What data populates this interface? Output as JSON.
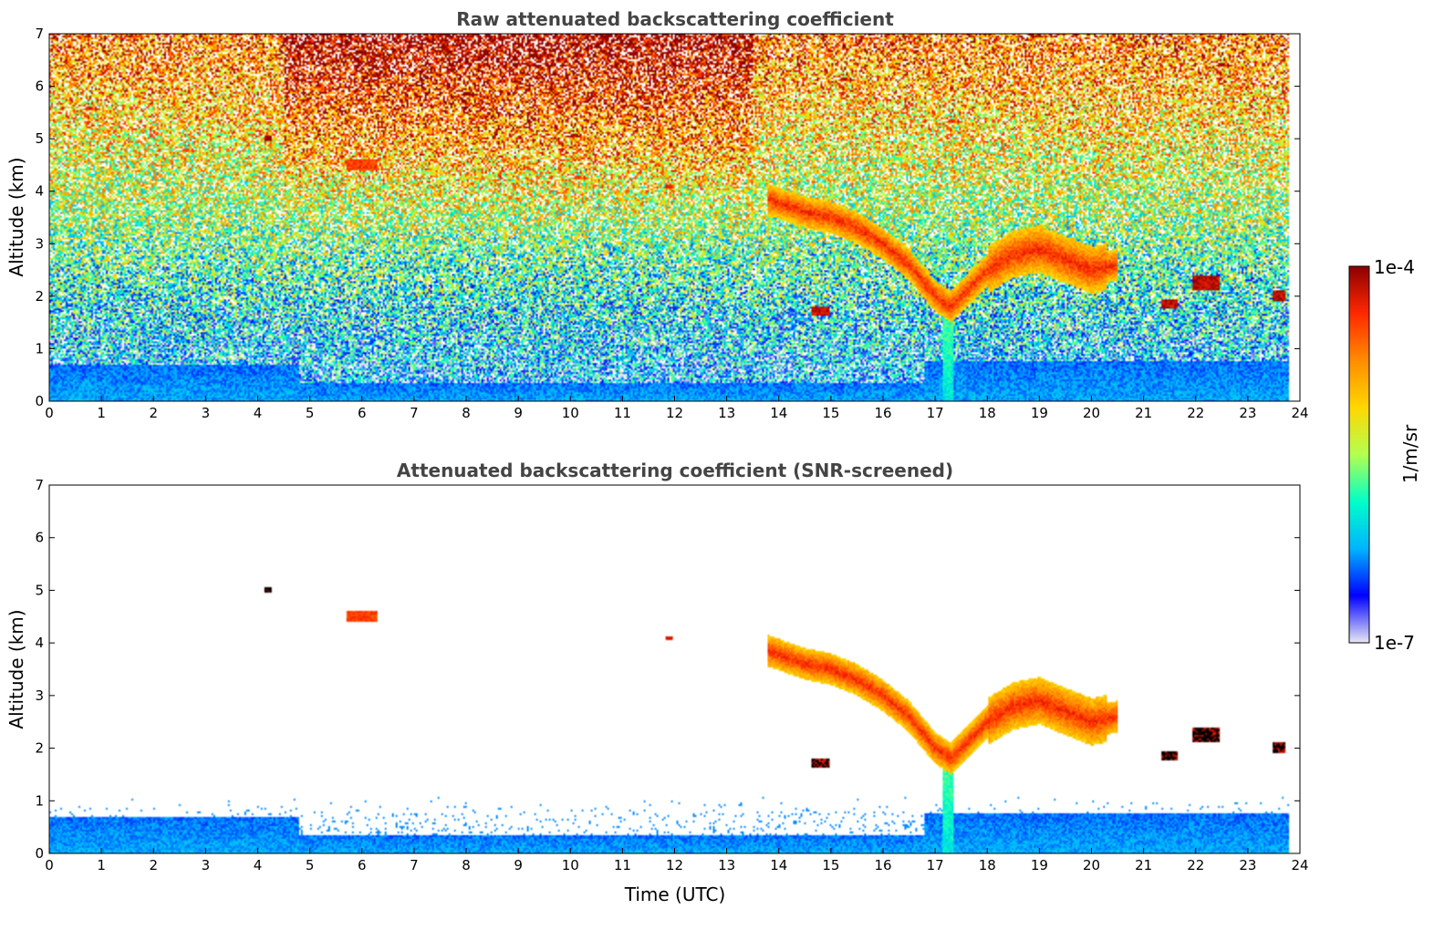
{
  "chart_data": [
    {
      "type": "heatmap",
      "title": "Raw attenuated backscattering coefficient",
      "xlabel": "",
      "ylabel": "Altitude (km)",
      "xlim": [
        0,
        24
      ],
      "ylim": [
        0,
        7
      ],
      "xticks": [
        0,
        1,
        2,
        3,
        4,
        5,
        6,
        7,
        8,
        9,
        10,
        11,
        12,
        13,
        14,
        15,
        16,
        17,
        18,
        19,
        20,
        21,
        22,
        23,
        24
      ],
      "yticks": [
        0,
        1,
        2,
        3,
        4,
        5,
        6,
        7
      ],
      "screened": false,
      "cloud_layer": {
        "x": [
          13.8,
          14.5,
          15.0,
          15.5,
          16.0,
          16.5,
          17.0,
          17.3,
          17.6,
          18.0,
          18.5,
          19.0,
          19.5,
          20.0,
          20.5
        ],
        "y": [
          3.85,
          3.6,
          3.5,
          3.3,
          3.0,
          2.6,
          2.0,
          1.8,
          2.1,
          2.5,
          2.8,
          2.9,
          2.7,
          2.5,
          2.6
        ]
      },
      "features": [
        {
          "x": 4.2,
          "y": 5.0,
          "w": 0.15,
          "h": 0.12,
          "level": 1.0
        },
        {
          "x": 14.8,
          "y": 1.72,
          "w": 0.35,
          "h": 0.15,
          "level": 0.95
        },
        {
          "x": 21.5,
          "y": 1.85,
          "w": 0.3,
          "h": 0.2,
          "level": 0.95
        },
        {
          "x": 22.2,
          "y": 2.25,
          "w": 0.5,
          "h": 0.25,
          "level": 0.95
        },
        {
          "x": 23.6,
          "y": 2.0,
          "w": 0.25,
          "h": 0.2,
          "level": 0.95
        },
        {
          "x": 6.0,
          "y": 4.5,
          "w": 0.6,
          "h": 0.2,
          "level": 0.85
        },
        {
          "x": 11.9,
          "y": 4.08,
          "w": 0.15,
          "h": 0.06,
          "level": 0.9
        }
      ]
    },
    {
      "type": "heatmap",
      "title": "Attenuated backscattering coefficient (SNR-screened)",
      "xlabel": "Time (UTC)",
      "ylabel": "Altitude (km)",
      "xlim": [
        0,
        24
      ],
      "ylim": [
        0,
        7
      ],
      "xticks": [
        0,
        1,
        2,
        3,
        4,
        5,
        6,
        7,
        8,
        9,
        10,
        11,
        12,
        13,
        14,
        15,
        16,
        17,
        18,
        19,
        20,
        21,
        22,
        23,
        24
      ],
      "yticks": [
        0,
        1,
        2,
        3,
        4,
        5,
        6,
        7
      ],
      "screened": true
    }
  ],
  "colorbar": {
    "label": "1/m/sr",
    "max_label": "1e-4",
    "min_label": "1e-7",
    "colormap": [
      "#e8e8f4",
      "#0000ff",
      "#00b4ff",
      "#00ffc8",
      "#b4ff50",
      "#ffd700",
      "#ff8c00",
      "#ff2800",
      "#8b0000"
    ]
  }
}
